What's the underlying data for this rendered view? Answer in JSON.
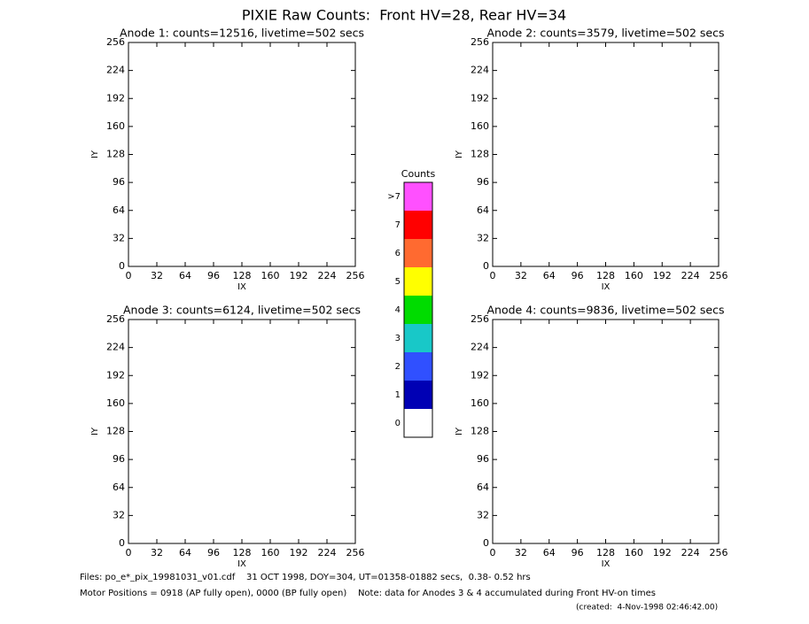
{
  "title": "PIXIE Raw Counts:  Front HV=28, Rear HV=34",
  "chart_data": [
    {
      "type": "heatmap",
      "title": "Anode 1: counts=12516, livetime=502 secs",
      "x_label": "IX",
      "y_label": "IY",
      "xlim": [
        0,
        256
      ],
      "ylim": [
        0,
        256
      ],
      "xticks": [
        0,
        32,
        64,
        96,
        128,
        160,
        192,
        224,
        256
      ],
      "yticks": [
        0,
        32,
        64,
        96,
        128,
        160,
        192,
        224,
        256
      ]
    },
    {
      "type": "heatmap",
      "title": "Anode 2: counts=3579, livetime=502 secs",
      "x_label": "IX",
      "y_label": "IY",
      "xlim": [
        0,
        256
      ],
      "ylim": [
        0,
        256
      ],
      "xticks": [
        0,
        32,
        64,
        96,
        128,
        160,
        192,
        224,
        256
      ],
      "yticks": [
        0,
        32,
        64,
        96,
        128,
        160,
        192,
        224,
        256
      ]
    },
    {
      "type": "heatmap",
      "title": "Anode 3: counts=6124, livetime=502 secs",
      "x_label": "IX",
      "y_label": "IY",
      "xlim": [
        0,
        256
      ],
      "ylim": [
        0,
        256
      ],
      "xticks": [
        0,
        32,
        64,
        96,
        128,
        160,
        192,
        224,
        256
      ],
      "yticks": [
        0,
        32,
        64,
        96,
        128,
        160,
        192,
        224,
        256
      ]
    },
    {
      "type": "heatmap",
      "title": "Anode 4: counts=9836, livetime=502 secs",
      "x_label": "IX",
      "y_label": "IY",
      "xlim": [
        0,
        256
      ],
      "ylim": [
        0,
        256
      ],
      "xticks": [
        0,
        32,
        64,
        96,
        128,
        160,
        192,
        224,
        256
      ],
      "yticks": [
        0,
        32,
        64,
        96,
        128,
        160,
        192,
        224,
        256
      ]
    }
  ],
  "colorbar": {
    "title": "Counts",
    "levels": [
      "0",
      "1",
      "2",
      "3",
      "4",
      "5",
      "6",
      "7",
      ">7"
    ],
    "colors": [
      "#ffffff",
      "#0000b4",
      "#3050ff",
      "#18c8c8",
      "#00dc00",
      "#ffff00",
      "#ff6a30",
      "#ff0000",
      "#ff50ff"
    ]
  },
  "footer": [
    "Files: po_e*_pix_19981031_v01.cdf    31 OCT 1998, DOY=304, UT=01358-01882 secs,  0.38- 0.52 hrs",
    "Motor Positions = 0918 (AP fully open), 0000 (BP fully open)    Note: data for Anodes 3 & 4 accumulated during Front HV-on times",
    "(created:  4-Nov-1998 02:46:42.00)"
  ]
}
